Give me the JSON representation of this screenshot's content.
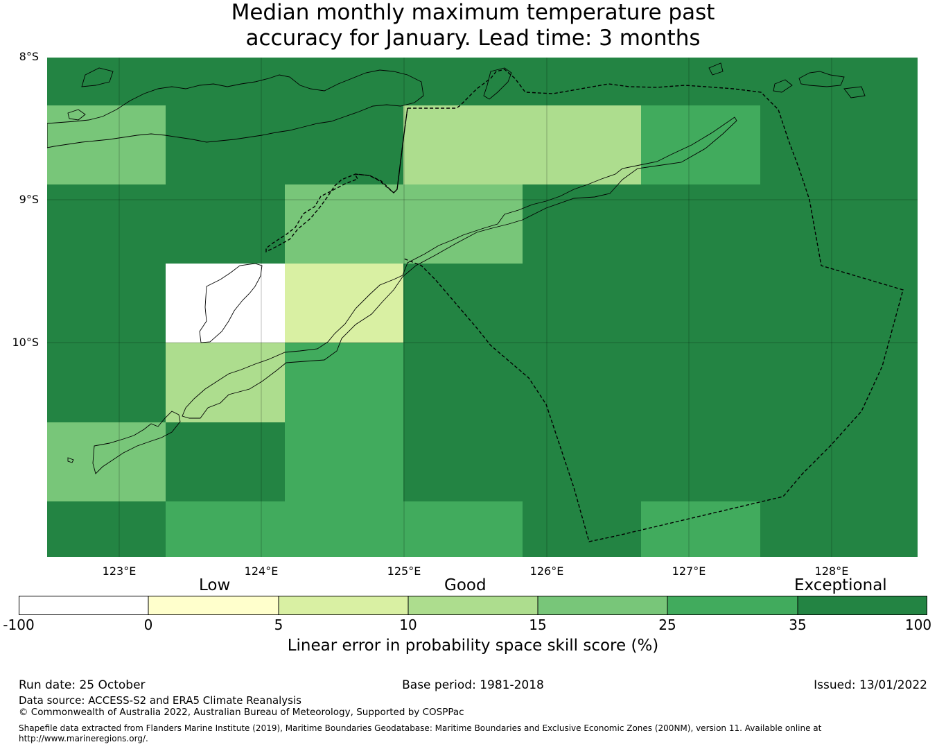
{
  "title_line1": "Median monthly maximum temperature past",
  "title_line2": "accuracy for January. Lead time: 3 months",
  "map": {
    "lat_labels": [
      "8°S",
      "9°S",
      "10°S"
    ],
    "lon_labels": [
      "123°E",
      "124°E",
      "125°E",
      "126°E",
      "127°E",
      "128°E"
    ]
  },
  "colorbar": {
    "categories": [
      "Low",
      "Good",
      "Exceptional"
    ],
    "ticks": [
      "-100",
      "0",
      "5",
      "10",
      "15",
      "25",
      "35",
      "100"
    ],
    "colors": [
      "#ffffff",
      "#ffffcc",
      "#d9f0a3",
      "#addd8e",
      "#78c679",
      "#41ab5d",
      "#238443"
    ],
    "label": "Linear error in probability space skill score (%)"
  },
  "footer": {
    "run_date": "Run date: 25 October",
    "base_period": "Base period: 1981-2018",
    "issued": "Issued: 13/01/2022",
    "data_source": "Data source: ACCESS-S2 and ERA5 Climate Reanalysis",
    "copyright": "© Commonwealth of Australia 2022, Australian Bureau of Meteorology, Supported by COSPPac",
    "shapefile_line1": "Shapefile data extracted from Flanders Marine Institute (2019), Maritime Boundaries Geodatabase: Maritime Boundaries and Exclusive Economic Zones (200NM), version 11. Available online at",
    "shapefile_line2": "http://www.marineregions.org/."
  }
}
